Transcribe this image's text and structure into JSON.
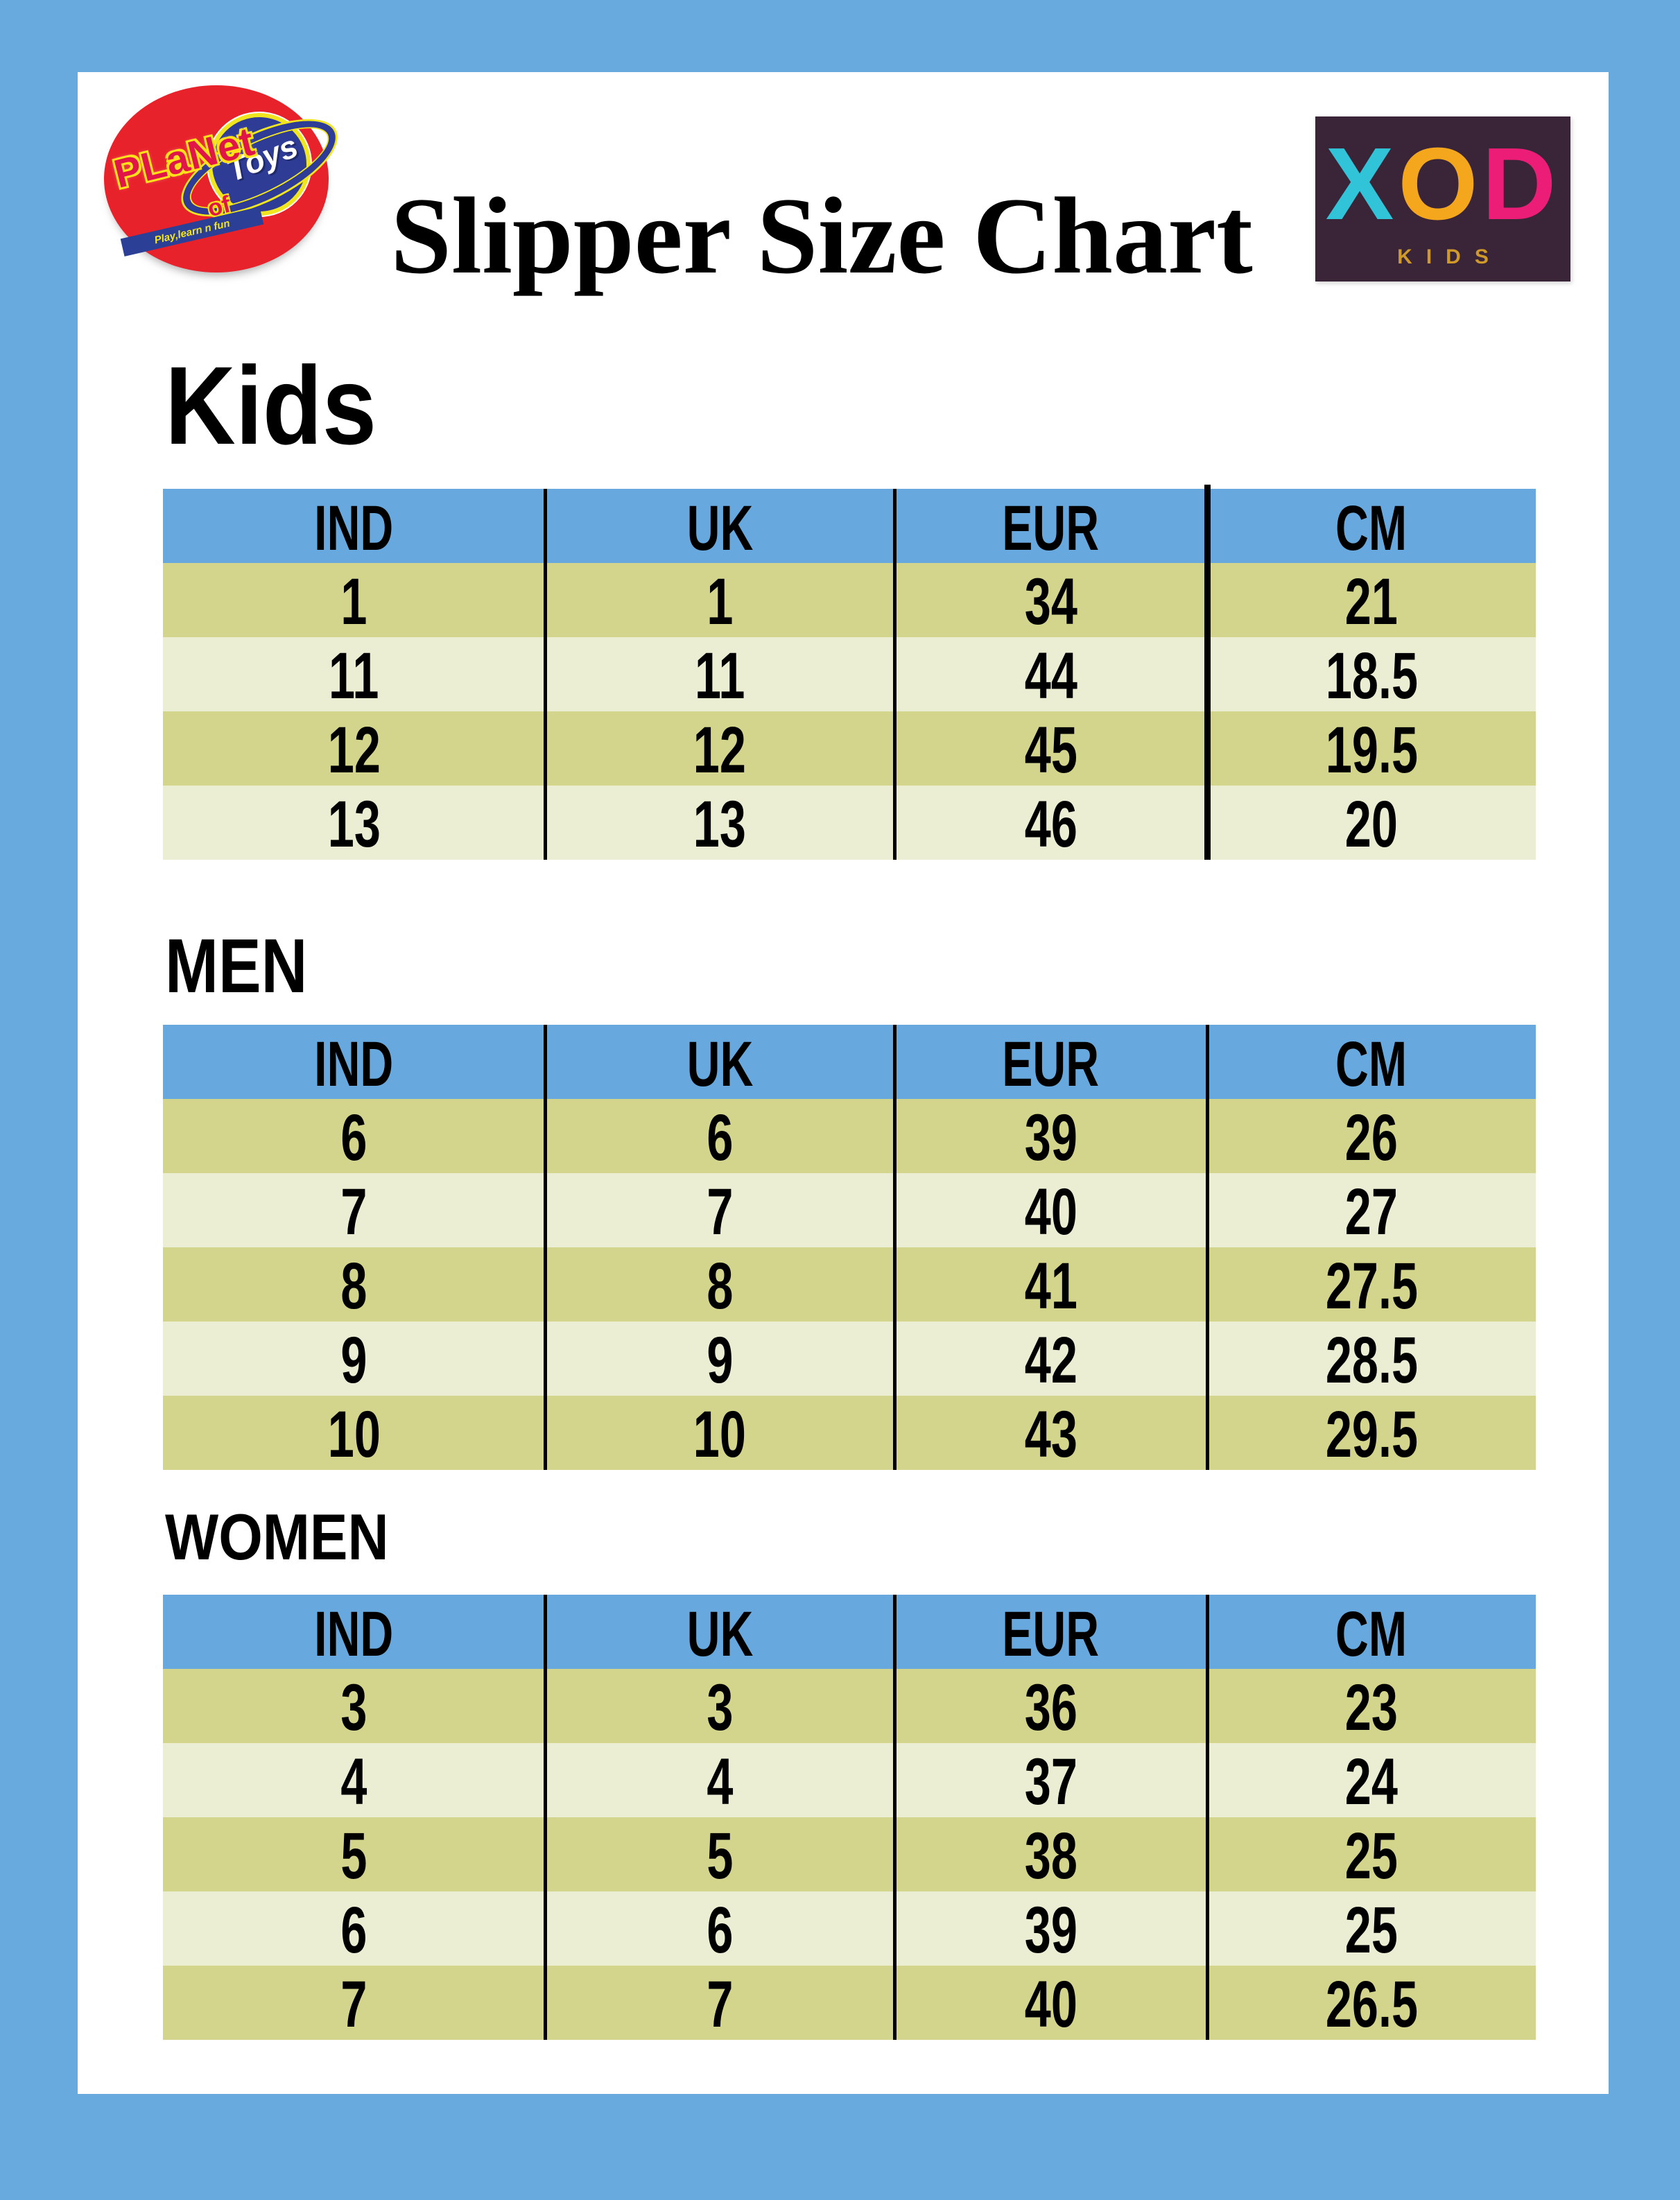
{
  "page": {
    "title": "Slipper Size Chart",
    "colors": {
      "frame_blue": "#68a9de",
      "header_blue": "#67a9de",
      "row_dark": "#d2d58b",
      "row_light": "#ebeed2",
      "text_black": "#000000",
      "white": "#ffffff"
    }
  },
  "logos": {
    "planet_of_toys": {
      "word1": "PLaNet",
      "word2": "of",
      "word3": "Toys",
      "tagline": "Play,learn n fun",
      "oval_red": "#e8222b",
      "planet_blue": "#2f3c95",
      "outline_yellow": "#ffe11a"
    },
    "xod": {
      "letters": [
        {
          "char": "X",
          "color": "#31c3d8"
        },
        {
          "char": "O",
          "color": "#f4a71d"
        },
        {
          "char": "D",
          "color": "#eb1d76"
        }
      ],
      "subtitle": "KIDS",
      "subtitle_color": "#cf9a2a",
      "background": "#3a2438"
    }
  },
  "sections": [
    {
      "heading": "Kids",
      "columns": [
        "IND",
        "UK",
        "EUR",
        "CM"
      ],
      "rows": [
        [
          "1",
          "1",
          "34",
          "21"
        ],
        [
          "11",
          "11",
          "44",
          "18.5"
        ],
        [
          "12",
          "12",
          "45",
          "19.5"
        ],
        [
          "13",
          "13",
          "46",
          "20"
        ]
      ]
    },
    {
      "heading": "MEN",
      "columns": [
        "IND",
        "UK",
        "EUR",
        "CM"
      ],
      "rows": [
        [
          "6",
          "6",
          "39",
          "26"
        ],
        [
          "7",
          "7",
          "40",
          "27"
        ],
        [
          "8",
          "8",
          "41",
          "27.5"
        ],
        [
          "9",
          "9",
          "42",
          "28.5"
        ],
        [
          "10",
          "10",
          "43",
          "29.5"
        ]
      ]
    },
    {
      "heading": "WOMEN",
      "columns": [
        "IND",
        "UK",
        "EUR",
        "CM"
      ],
      "rows": [
        [
          "3",
          "3",
          "36",
          "23"
        ],
        [
          "4",
          "4",
          "37",
          "24"
        ],
        [
          "5",
          "5",
          "38",
          "25"
        ],
        [
          "6",
          "6",
          "39",
          "25"
        ],
        [
          "7",
          "7",
          "40",
          "26.5"
        ]
      ]
    }
  ]
}
